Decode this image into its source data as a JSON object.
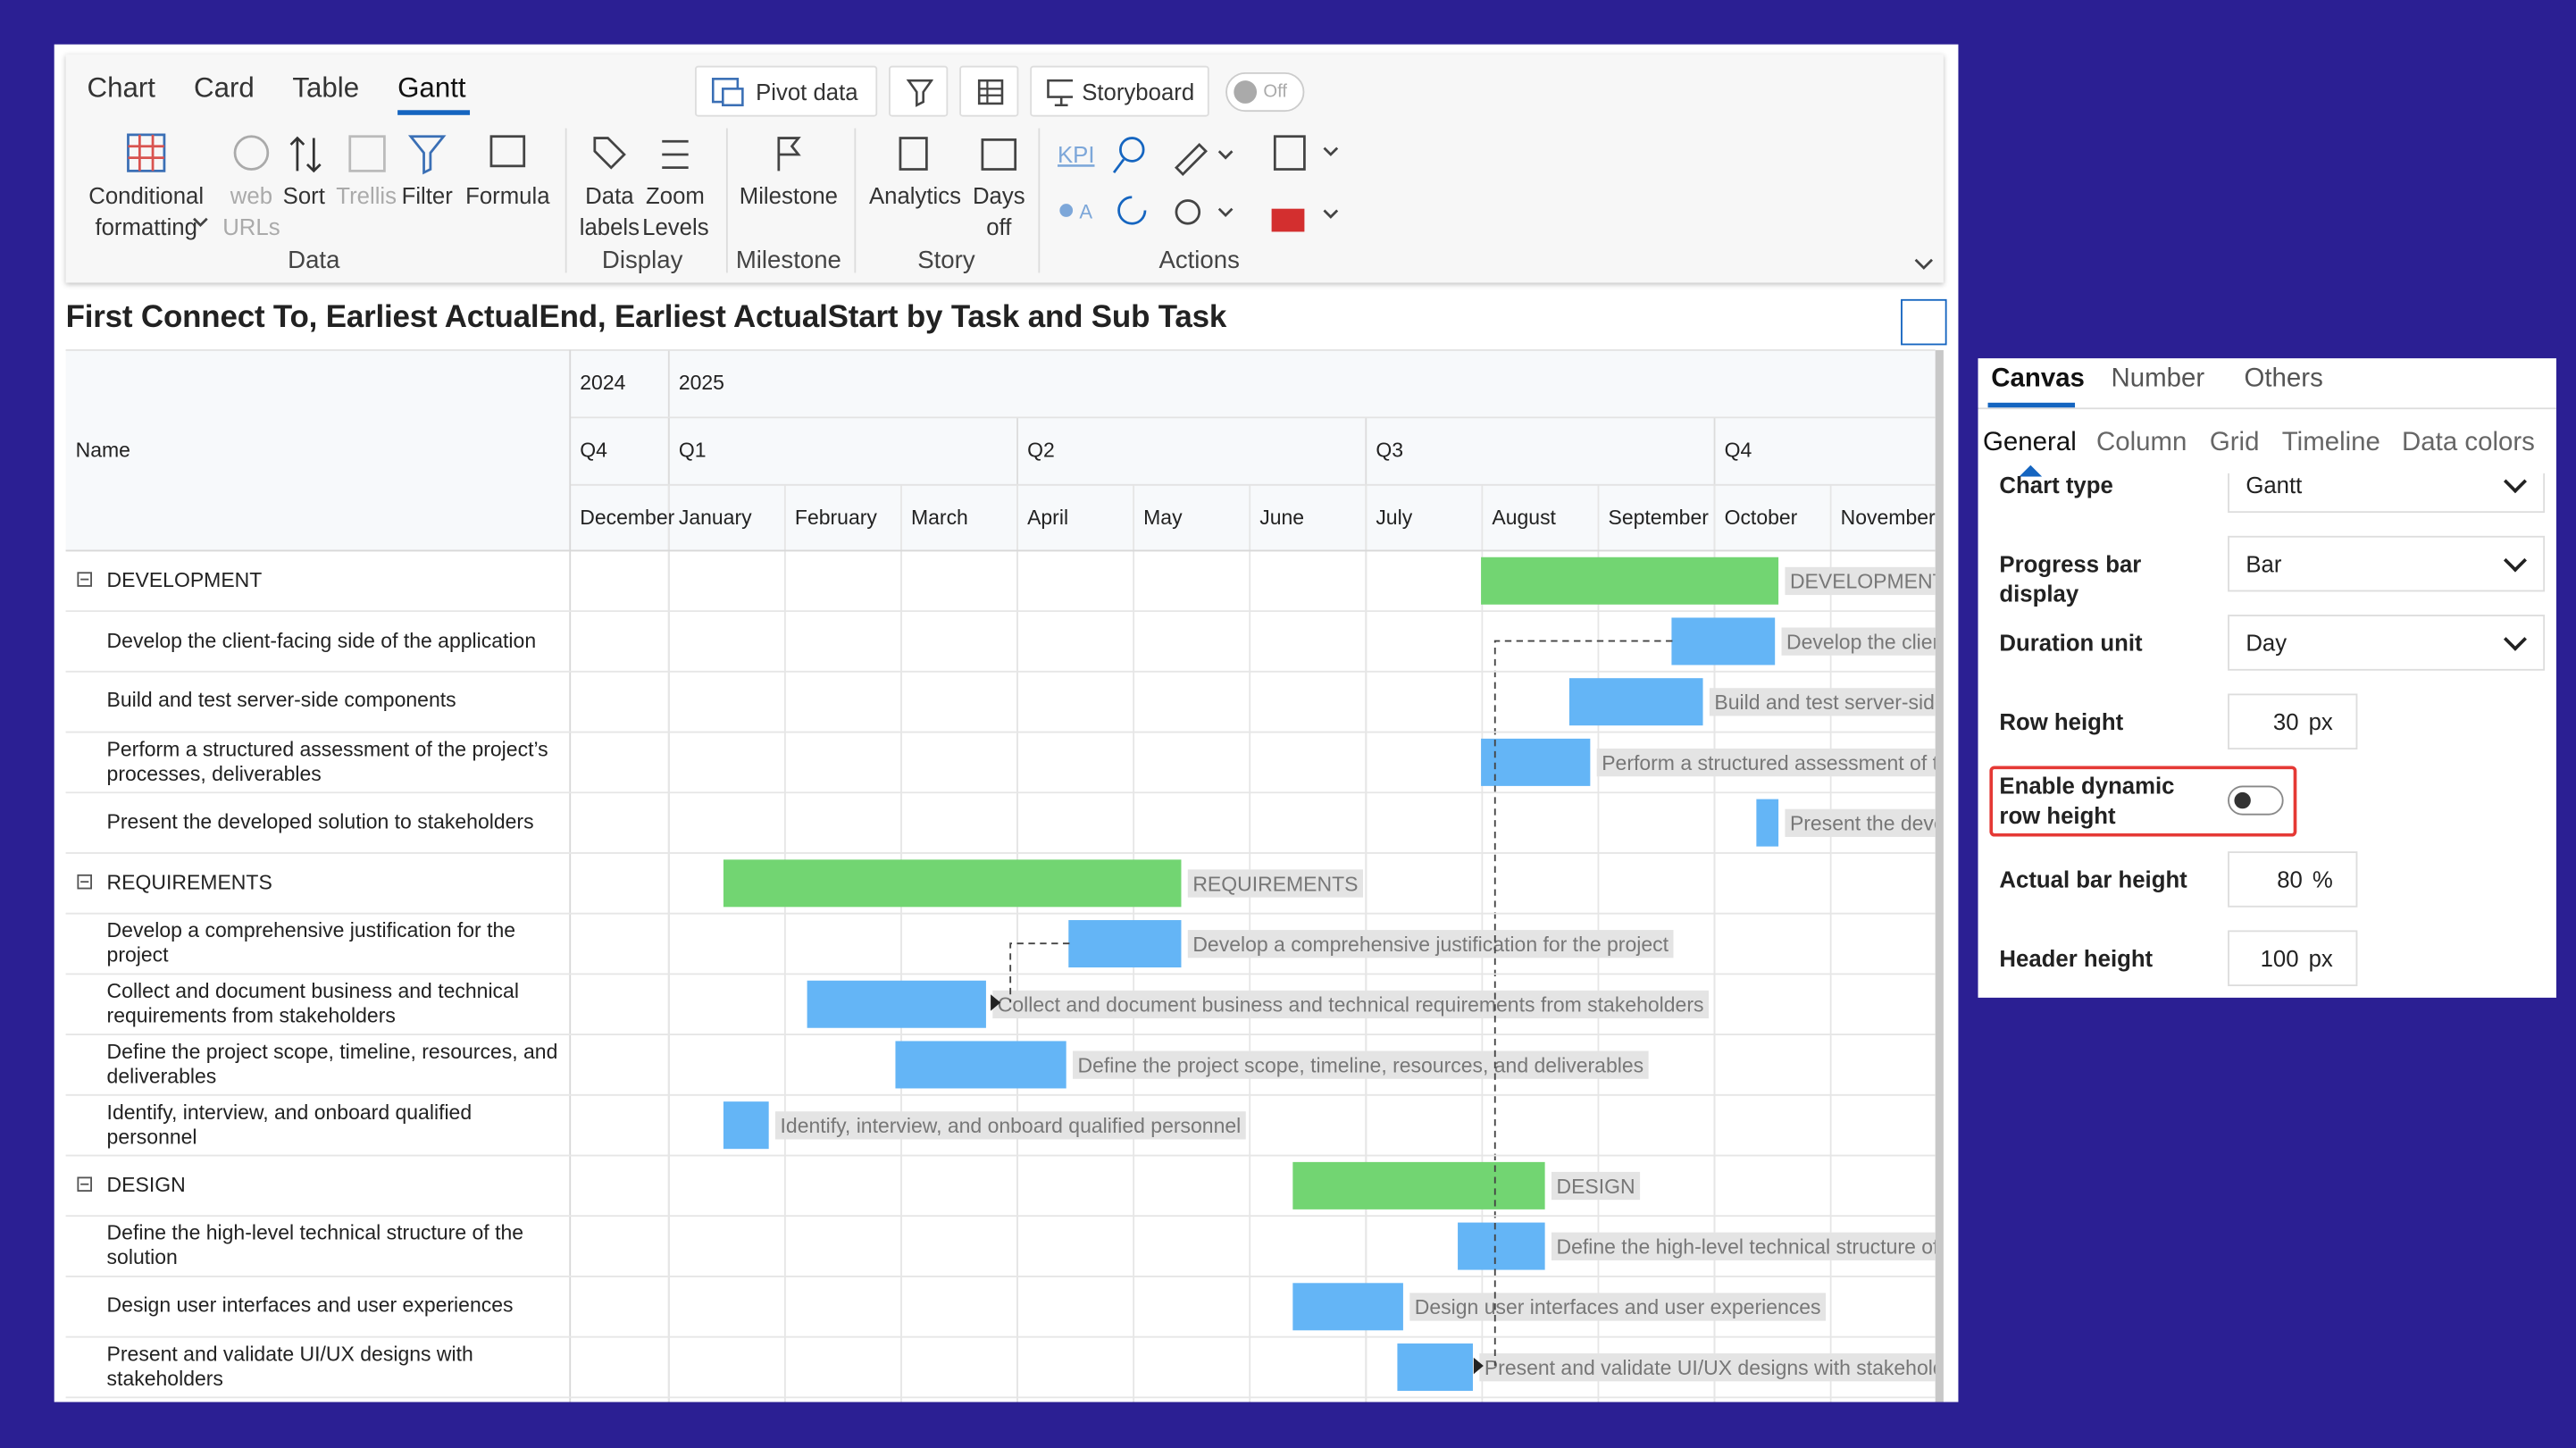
{
  "tabs": [
    "Chart",
    "Card",
    "Table",
    "Gantt"
  ],
  "top_buttons": [
    "Pivot data",
    "Storyboard",
    "Off"
  ],
  "ribbon": {
    "items": [
      "Conditional formatting",
      "web URLs",
      "Sort",
      "Trellis",
      "Filter",
      "Formula",
      "Data labels",
      "Zoom Levels",
      "Milestone",
      "Analytics",
      "Days off",
      "KPI",
      "A"
    ],
    "groups": [
      "Data",
      "Display",
      "Milestone",
      "Story",
      "Actions"
    ]
  },
  "title": "First Connect To, Earliest ActualEnd, Earliest ActualStart by Task and Sub Task",
  "gantt": {
    "name_header": "Name",
    "xlim": [
      -0.85,
      10.9
    ],
    "years": [
      {
        "label": "2024",
        "start": -3
      },
      {
        "label": "2025",
        "start": 0
      }
    ],
    "quarters": [
      {
        "label": "Q4",
        "start": -3
      },
      {
        "label": "Q1",
        "start": 0
      },
      {
        "label": "Q2",
        "start": 3
      },
      {
        "label": "Q3",
        "start": 6
      },
      {
        "label": "Q4",
        "start": 9
      }
    ],
    "months": [
      {
        "label": "December",
        "start": -1
      },
      {
        "label": "January",
        "start": 0
      },
      {
        "label": "February",
        "start": 1
      },
      {
        "label": "March",
        "start": 2
      },
      {
        "label": "April",
        "start": 3
      },
      {
        "label": "May",
        "start": 4
      },
      {
        "label": "June",
        "start": 5
      },
      {
        "label": "July",
        "start": 6
      },
      {
        "label": "August",
        "start": 7
      },
      {
        "label": "September",
        "start": 8
      },
      {
        "label": "October",
        "start": 9
      },
      {
        "label": "November",
        "start": 10
      }
    ],
    "colors": {
      "group": "#72d572",
      "task": "#64b5f6"
    },
    "rows": [
      {
        "name": "DEVELOPMENT",
        "group": true,
        "start": 6.99,
        "end": 9.55
      },
      {
        "name": "Develop the client-facing side of the application",
        "group": false,
        "start": 8.63,
        "end": 9.52
      },
      {
        "name": "Build and test server-side components",
        "group": false,
        "start": 7.75,
        "end": 8.9
      },
      {
        "name": "Perform a structured assessment of the project’s processes, deliverables",
        "group": false,
        "start": 6.99,
        "end": 7.93
      },
      {
        "name": "Present the developed solution to stakeholders",
        "group": false,
        "start": 9.36,
        "end": 9.55
      },
      {
        "name": "REQUIREMENTS",
        "group": true,
        "start": 0.47,
        "end": 4.41
      },
      {
        "name": "Develop a comprehensive justification for the project",
        "group": false,
        "start": 3.44,
        "end": 4.41
      },
      {
        "name": "Collect and document business and technical requirements from stakeholders",
        "group": false,
        "start": 1.19,
        "end": 2.73
      },
      {
        "name": "Define the project scope, timeline, resources, and deliverables",
        "group": false,
        "start": 1.95,
        "end": 3.42
      },
      {
        "name": "Identify, interview, and onboard qualified personnel",
        "group": false,
        "start": 0.47,
        "end": 0.86
      },
      {
        "name": "DESIGN",
        "group": true,
        "start": 5.37,
        "end": 7.54
      },
      {
        "name": "Define the high-level technical structure of the solution",
        "group": false,
        "start": 6.79,
        "end": 7.54
      },
      {
        "name": "Design user interfaces and user experiences",
        "group": false,
        "start": 5.37,
        "end": 6.32
      },
      {
        "name": "Present and validate UI/UX designs with stakeholders",
        "group": false,
        "start": 6.27,
        "end": 6.92
      }
    ]
  },
  "panel": {
    "tabs": [
      "Canvas",
      "Number",
      "Others"
    ],
    "subtabs": [
      "General",
      "Column",
      "Grid",
      "Timeline",
      "Data colors"
    ],
    "fields": [
      {
        "label": "Chart type",
        "value": "Gantt"
      },
      {
        "label": "Progress bar display",
        "value": "Bar"
      },
      {
        "label": "Duration unit",
        "value": "Day"
      },
      {
        "label": "Row height",
        "value": 30,
        "unit": "px"
      },
      {
        "label": "Enable dynamic row height"
      },
      {
        "label": "Actual bar height",
        "value": 80,
        "unit": "%"
      },
      {
        "label": "Header height",
        "value": 100,
        "unit": "px"
      }
    ]
  }
}
